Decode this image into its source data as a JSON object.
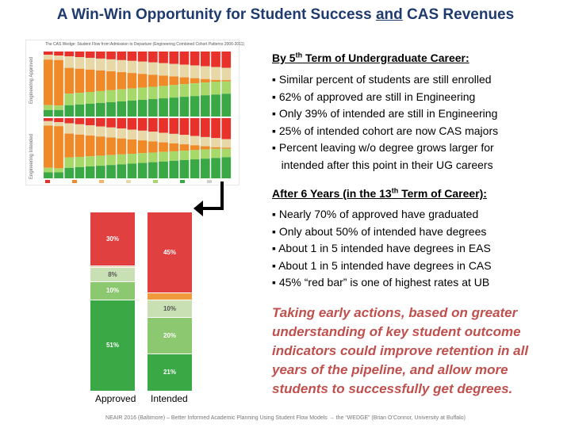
{
  "title": {
    "part1": "A Win-Win Opportunity for Student Success ",
    "and": "and",
    "part2": " CAS Revenues"
  },
  "section1": {
    "head_pre": "By 5",
    "head_sup": "th",
    "head_post": " Term of Undergraduate Career:",
    "bullets": [
      "▪ Similar percent of students are still enrolled",
      "▪ 62% of approved are still in Engineering",
      "▪ Only 39% of intended are still in Engineering",
      "▪ 25% of intended cohort are now CAS majors",
      "▪ Percent leaving w/o degree grows larger for",
      "   intended after this point in their UG careers"
    ]
  },
  "section2": {
    "head_pre": "After 6 Years (in the 13",
    "head_sup": "th",
    "head_post": " Term of Career):",
    "bullets": [
      "▪ Nearly 70% of approved have graduated",
      "▪ Only about 50% of intended have degrees",
      "▪ About 1 in 5 intended have degrees in EAS",
      "▪ About 1 in 5 intended have degrees in CAS",
      "▪ 45% “red bar” is one of highest rates at UB"
    ]
  },
  "callout": "Taking early actions, based on greater understanding of key student outcome indicators could improve retention in all years of the pipeline, and allow more students to successfully get degrees.",
  "footer": "NEAIR 2016 (Baltimore) – Better Informed Academic Planning Using Student Flow Models → the “WEDGE” (Brian O’Connor, University at Buffalo)",
  "thumbnail": {
    "title": "The CAS Wedge: Student Flow from Admission to Departure (Engineering Combined Cohort Patterns 2006-2011)",
    "row_labels": [
      "Engineering Approved",
      "Engineering Intended"
    ],
    "colors": {
      "red": "#e8312a",
      "orange": "#f08a28",
      "lightorange": "#f7b56b",
      "tan": "#e8d8a8",
      "lightgreen": "#a6d96a",
      "green": "#3aa845",
      "gray": "#cfcfcf"
    }
  },
  "stacked_chart": {
    "labels": [
      "Approved",
      "Intended"
    ],
    "approved": [
      {
        "label": "30%",
        "value": 30,
        "color": "#e04040"
      },
      {
        "label": "",
        "value": 1,
        "color": "#e8c4a0"
      },
      {
        "label": "8%",
        "value": 8,
        "color": "#c9e0b4"
      },
      {
        "label": "10%",
        "value": 10,
        "color": "#8cc870"
      },
      {
        "label": "51%",
        "value": 51,
        "color": "#3aa845"
      }
    ],
    "intended": [
      {
        "label": "45%",
        "value": 45,
        "color": "#e04040"
      },
      {
        "label": "",
        "value": 4,
        "color": "#ef9a3c"
      },
      {
        "label": "10%",
        "value": 10,
        "color": "#c9e0b4"
      },
      {
        "label": "20%",
        "value": 20,
        "color": "#8cc870"
      },
      {
        "label": "21%",
        "value": 21,
        "color": "#3aa845"
      }
    ]
  }
}
